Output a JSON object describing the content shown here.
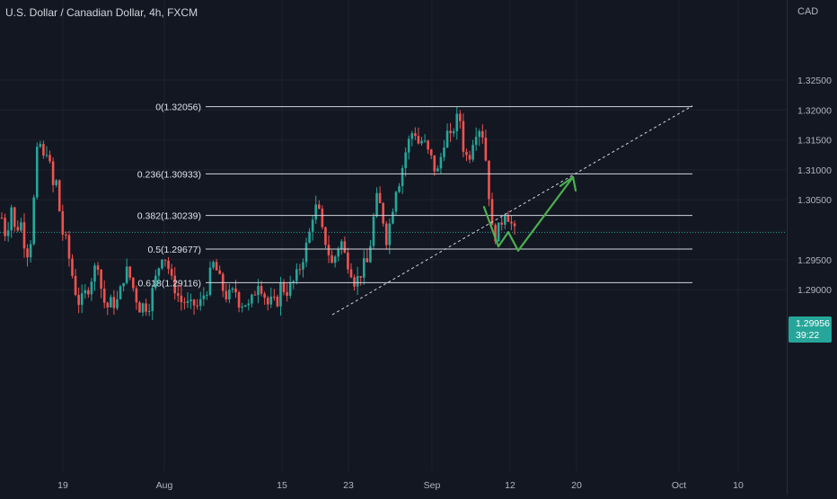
{
  "header": {
    "title": "U.S. Dollar / Canadian Dollar, 4h, FXCM"
  },
  "price_axis": {
    "currency": "CAD"
  },
  "last_price": {
    "value": "1.29956",
    "countdown": "39:22"
  },
  "colors": {
    "background": "#131722",
    "up": "#26a69a",
    "down": "#ef5350",
    "arrow": "#4caf50",
    "fib_line": "#d1d4dc",
    "text": "#b2b5be"
  },
  "chart_data": {
    "type": "candlestick",
    "y_axis": {
      "ticks": [
        1.325,
        1.32,
        1.315,
        1.31,
        1.305,
        1.295,
        1.29
      ],
      "tick_labels": [
        "1.32500",
        "1.32000",
        "1.31500",
        "1.31000",
        "1.30500",
        "1.29500",
        "1.29000"
      ],
      "range": [
        1.2857,
        1.3316
      ]
    },
    "x_axis": {
      "tick_labels": [
        "19",
        "Aug",
        "15",
        "23",
        "Sep",
        "12",
        "20",
        "Oct",
        "10"
      ]
    },
    "fibonacci": [
      {
        "ratio": 0,
        "price": 1.32056,
        "label": "0(1.32056)"
      },
      {
        "ratio": 0.236,
        "price": 1.30933,
        "label": "0.236(1.30933)"
      },
      {
        "ratio": 0.382,
        "price": 1.30239,
        "label": "0.382(1.30239)"
      },
      {
        "ratio": 0.5,
        "price": 1.29677,
        "label": "0.5(1.29677)"
      },
      {
        "ratio": 0.618,
        "price": 1.29116,
        "label": "0.618(1.29116)"
      }
    ],
    "trendline": {
      "style": "dashed",
      "from_price": 1.2858,
      "to_price": 1.3207
    },
    "projection_path": [
      1.3038,
      1.2972,
      1.2996,
      1.2965,
      1.3088
    ],
    "current_price": 1.29956,
    "price_path": [
      1.302,
      1.2985,
      1.3045,
      1.299,
      1.302,
      1.2975,
      1.2955,
      1.305,
      1.316,
      1.3115,
      1.314,
      1.307,
      1.308,
      1.3,
      1.298,
      1.294,
      1.29,
      1.2875,
      1.289,
      1.2905,
      1.293,
      1.2945,
      1.2885,
      1.287,
      1.288,
      1.2875,
      1.29,
      1.2935,
      1.292,
      1.2895,
      1.287,
      1.2875,
      1.287,
      1.29,
      1.293,
      1.296,
      1.295,
      1.2915,
      1.29,
      1.288,
      1.288,
      1.287,
      1.2875,
      1.287,
      1.289,
      1.2905,
      1.2945,
      1.293,
      1.2905,
      1.289,
      1.289,
      1.29,
      1.2875,
      1.288,
      1.287,
      1.289,
      1.2915,
      1.29,
      1.2875,
      1.288,
      1.2875,
      1.291,
      1.2895,
      1.2905,
      1.2915,
      1.2935,
      1.296,
      1.2985,
      1.303,
      1.304,
      1.2995,
      1.2975,
      1.294,
      1.296,
      1.2985,
      1.2955,
      1.294,
      1.2915,
      1.292,
      1.294,
      1.2945,
      1.301,
      1.3055,
      1.303,
      1.2985,
      1.302,
      1.307,
      1.3085,
      1.3125,
      1.315,
      1.317,
      1.3145,
      1.315,
      1.313,
      1.3115,
      1.309,
      1.3125,
      1.3165,
      1.315,
      1.318,
      1.319,
      1.3125,
      1.312,
      1.3155,
      1.3175,
      1.316,
      1.31,
      1.3,
      1.299,
      1.301,
      1.3035,
      1.3015,
      1.2995
    ]
  }
}
